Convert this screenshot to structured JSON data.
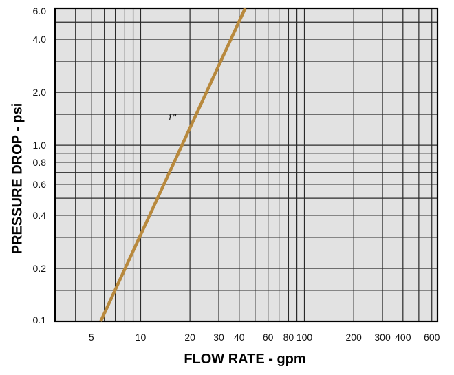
{
  "chart_data": {
    "type": "line",
    "title": "",
    "xlabel": "FLOW RATE - gpm",
    "ylabel": "PRESSURE DROP - psi",
    "x_scale": "log",
    "y_scale": "log",
    "xlim": [
      3,
      650
    ],
    "ylim": [
      0.1,
      6.0
    ],
    "grid": true,
    "background_color": "#e2e2e2",
    "grid_color": "#2a2a2a",
    "line_color": "#b8893d",
    "x_ticks": [
      {
        "value": 5,
        "label": "5"
      },
      {
        "value": 10,
        "label": "10"
      },
      {
        "value": 20,
        "label": "20"
      },
      {
        "value": 30,
        "label": "30"
      },
      {
        "value": 40,
        "label": "40"
      },
      {
        "value": 60,
        "label": "60"
      },
      {
        "value": 80,
        "label": "80"
      },
      {
        "value": 100,
        "label": "100"
      },
      {
        "value": 200,
        "label": "200"
      },
      {
        "value": 300,
        "label": "300"
      },
      {
        "value": 400,
        "label": "400"
      },
      {
        "value": 600,
        "label": "600"
      }
    ],
    "y_ticks": [
      {
        "value": 0.1,
        "label": "0.1"
      },
      {
        "value": 0.2,
        "label": "0.2"
      },
      {
        "value": 0.4,
        "label": "0.4"
      },
      {
        "value": 0.6,
        "label": "0.6"
      },
      {
        "value": 0.8,
        "label": "0.8"
      },
      {
        "value": 1.0,
        "label": "1.0"
      },
      {
        "value": 2.0,
        "label": "2.0"
      },
      {
        "value": 4.0,
        "label": "4.0"
      },
      {
        "value": 6.0,
        "label": "6.0"
      }
    ],
    "x_gridlines": [
      4,
      5,
      6,
      7,
      8,
      9,
      10,
      20,
      30,
      40,
      50,
      60,
      70,
      80,
      90,
      100,
      200,
      300,
      400,
      500,
      600
    ],
    "y_gridlines": [
      0.1,
      0.15,
      0.2,
      0.3,
      0.4,
      0.5,
      0.6,
      0.7,
      0.8,
      0.9,
      1.0,
      1.5,
      2.0,
      3.0,
      4.0,
      5.0,
      6.0
    ],
    "series": [
      {
        "name": "1″",
        "label_at": {
          "x": 17.5,
          "y": 1.45
        },
        "x": [
          5.7,
          43.5
        ],
        "y": [
          0.1,
          6.0
        ]
      }
    ]
  }
}
